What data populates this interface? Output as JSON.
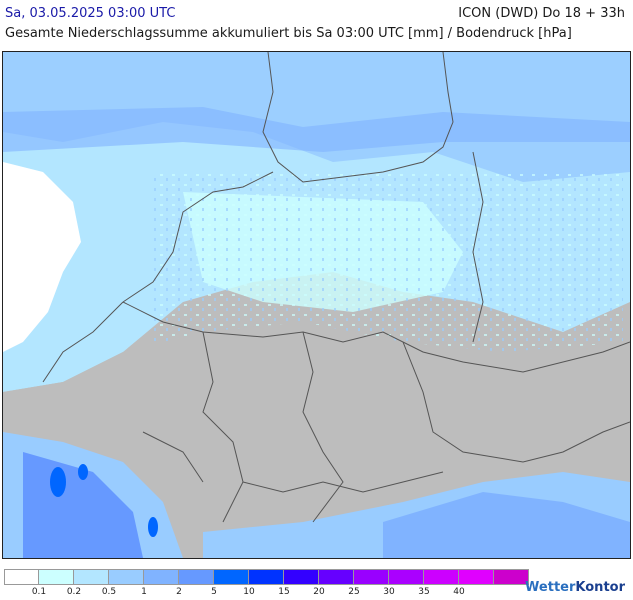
{
  "header": {
    "datetime": "Sa, 03.05.2025 03:00 UTC",
    "model": "ICON (DWD) Do 18 + 33h",
    "subtitle": "Gesamte Niederschlagssumme akkumuliert bis Sa 03:00 UTC [mm] / Bodendruck [hPa]"
  },
  "legend": {
    "colors": [
      "#ffffff",
      "#ccffff",
      "#b3e6ff",
      "#99ccff",
      "#80b3ff",
      "#6699ff",
      "#0066ff",
      "#0033ff",
      "#3300ff",
      "#6600ff",
      "#9900ff",
      "#aa00ff",
      "#cc00ff",
      "#e000ff",
      "#cc00cc"
    ],
    "labels": [
      "0.1",
      "0.2",
      "0.5",
      "1",
      "2",
      "5",
      "10",
      "15",
      "20",
      "25",
      "30",
      "35",
      "40"
    ]
  },
  "brand": {
    "name_a": "Wetter",
    "name_b": "Kontor"
  },
  "colors": {
    "land": "#bdbdbd",
    "sea_rain": "#b3e6ff",
    "light_rain": "#ccffff",
    "moderate_rain": "#80b3ff",
    "heavy_rain": "#3366ff",
    "border": "#555555"
  }
}
